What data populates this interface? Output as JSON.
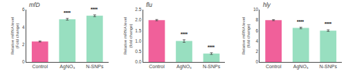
{
  "chart_data": [
    {
      "type": "bar",
      "title": "mfD",
      "ylabel": "Relative mRNA level\n(Fold change)",
      "categories": [
        "Control",
        "AgNO₃",
        "N-SNPs"
      ],
      "values": [
        2.35,
        4.9,
        5.3
      ],
      "errors": [
        0.06,
        0.1,
        0.1
      ],
      "colors": [
        "#f0609a",
        "#98dfc0",
        "#98dfc0"
      ],
      "ylim": [
        0,
        6
      ],
      "yticks": [
        0,
        2,
        4,
        6
      ],
      "grid": false,
      "annotations": [
        {
          "category": "AgNO₃",
          "text": "****"
        },
        {
          "category": "N-SNPs",
          "text": "****"
        }
      ]
    },
    {
      "type": "bar",
      "title": "flu",
      "ylabel": "Relative mRNA level\n(fold change)",
      "categories": [
        "Control",
        "AgNO₃",
        "N-SNPs"
      ],
      "values": [
        2.0,
        1.0,
        0.4
      ],
      "errors": [
        0.03,
        0.06,
        0.04
      ],
      "colors": [
        "#f0609a",
        "#98dfc0",
        "#98dfc0"
      ],
      "ylim": [
        0,
        2.5
      ],
      "yticks": [
        {
          "value": 0,
          "label": "0.0"
        },
        0.5,
        {
          "value": 1,
          "label": "1.0"
        },
        1.5,
        {
          "value": 2,
          "label": "2.0"
        },
        2.5
      ],
      "grid": false,
      "annotations": [
        {
          "category": "AgNO₃",
          "text": "****"
        },
        {
          "category": "N-SNPs",
          "text": "****"
        }
      ]
    },
    {
      "type": "bar",
      "title": "hly",
      "ylabel": "Relative mRNA level\n(fold change)",
      "categories": [
        "Control",
        "AgNO₃",
        "N-SNPs"
      ],
      "values": [
        8.0,
        6.5,
        6.0
      ],
      "errors": [
        0.1,
        0.15,
        0.15
      ],
      "colors": [
        "#f0609a",
        "#98dfc0",
        "#98dfc0"
      ],
      "ylim": [
        0,
        10
      ],
      "yticks": [
        0,
        2,
        4,
        6,
        8,
        10
      ],
      "grid": false,
      "annotations": [
        {
          "category": "AgNO₃",
          "text": "****"
        },
        {
          "category": "N-SNPs",
          "text": "****"
        }
      ]
    }
  ]
}
